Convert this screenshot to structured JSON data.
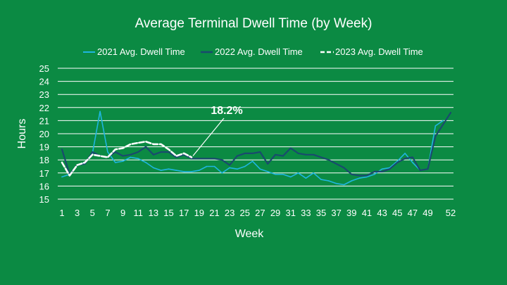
{
  "colors": {
    "background": "#0b8a43",
    "text": "#ffffff",
    "grid": "#ffffff",
    "series_2021": "#1fb6e0",
    "series_2022": "#1a4a6e",
    "series_2023": "#ffffff"
  },
  "chart_data": {
    "type": "line",
    "title": "Average Terminal Dwell Time (by Week)",
    "xlabel": "Week",
    "ylabel": "Hours",
    "ylim": [
      15,
      25
    ],
    "yticks": [
      "15",
      "16",
      "17",
      "18",
      "19",
      "20",
      "21",
      "22",
      "23",
      "24",
      "25"
    ],
    "xticks": [
      "1",
      "3",
      "5",
      "7",
      "9",
      "11",
      "13",
      "15",
      "17",
      "19",
      "21",
      "23",
      "25",
      "27",
      "29",
      "31",
      "33",
      "35",
      "37",
      "39",
      "41",
      "43",
      "45",
      "47",
      "49",
      "52"
    ],
    "grid": true,
    "legend_position": "top",
    "annotation": {
      "text": "18.2%",
      "x": 18,
      "y": 18.2
    },
    "series": [
      {
        "name": "2021 Avg. Dwell Time",
        "style": "solid",
        "x": [
          1,
          2,
          3,
          4,
          5,
          6,
          7,
          8,
          9,
          10,
          11,
          12,
          13,
          14,
          15,
          16,
          17,
          18,
          19,
          20,
          21,
          22,
          23,
          24,
          25,
          26,
          27,
          28,
          29,
          30,
          31,
          32,
          33,
          34,
          35,
          36,
          37,
          38,
          39,
          40,
          41,
          42,
          43,
          44,
          45,
          46,
          47,
          48,
          49,
          50,
          51
        ],
        "values": [
          16.7,
          16.9,
          17.6,
          17.8,
          18.5,
          21.7,
          18.6,
          17.8,
          17.9,
          18.2,
          18.1,
          17.8,
          17.4,
          17.2,
          17.3,
          17.2,
          17.1,
          17.1,
          17.2,
          17.5,
          17.5,
          17.0,
          17.4,
          17.3,
          17.5,
          17.9,
          17.3,
          17.1,
          16.9,
          16.9,
          16.7,
          17.0,
          16.6,
          17.0,
          16.5,
          16.4,
          16.2,
          16.1,
          16.4,
          16.6,
          16.7,
          16.9,
          17.3,
          17.4,
          17.9,
          18.5,
          17.8,
          17.2,
          17.3,
          20.6,
          21.0
        ]
      },
      {
        "name": "2022 Avg. Dwell Time",
        "style": "solid",
        "x": [
          1,
          2,
          3,
          4,
          5,
          6,
          7,
          8,
          9,
          10,
          11,
          12,
          13,
          14,
          15,
          16,
          17,
          18,
          19,
          20,
          21,
          22,
          23,
          24,
          25,
          26,
          27,
          28,
          29,
          30,
          31,
          32,
          33,
          34,
          35,
          36,
          37,
          38,
          39,
          40,
          41,
          42,
          43,
          44,
          45,
          46,
          47,
          48,
          49,
          50,
          52
        ],
        "values": [
          18.8,
          16.9,
          17.6,
          17.7,
          18.6,
          18.3,
          18.2,
          18.6,
          18.3,
          18.4,
          18.6,
          19.0,
          18.4,
          18.6,
          18.6,
          18.2,
          18.4,
          18.1,
          18.1,
          18.1,
          18.1,
          18.0,
          17.6,
          18.3,
          18.5,
          18.5,
          18.6,
          17.7,
          18.4,
          18.3,
          18.9,
          18.5,
          18.4,
          18.4,
          18.2,
          18.0,
          17.7,
          17.4,
          16.9,
          16.8,
          16.8,
          17.1,
          17.1,
          17.3,
          17.8,
          18.1,
          18.2,
          17.2,
          17.3,
          19.8,
          21.6
        ]
      },
      {
        "name": "2023 Avg. Dwell Time",
        "style": "dashed",
        "x": [
          1,
          2,
          3,
          4,
          5,
          6,
          7,
          8,
          9,
          10,
          11,
          12,
          13,
          14,
          15,
          16,
          17,
          18
        ],
        "values": [
          17.8,
          16.8,
          17.6,
          17.8,
          18.4,
          18.3,
          18.2,
          18.8,
          18.9,
          19.2,
          19.3,
          19.4,
          19.2,
          19.2,
          18.8,
          18.3,
          18.5,
          18.2
        ]
      }
    ]
  }
}
